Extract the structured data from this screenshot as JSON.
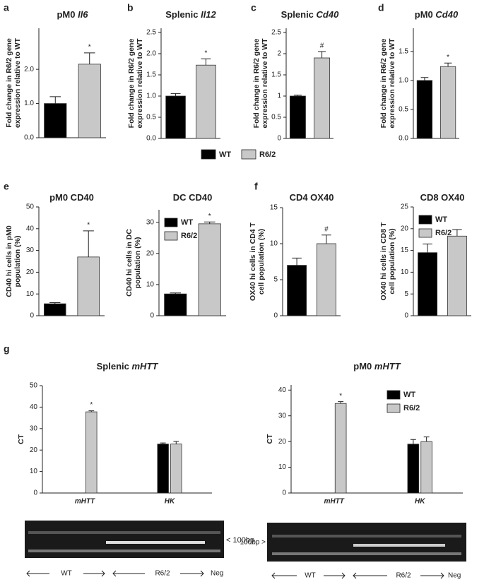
{
  "chart_data": [
    {
      "type": "bar",
      "panel": "a",
      "title": "pM0 ",
      "title_italic": "Il6",
      "ylabel": [
        "Fold change in R6/2 gene",
        "expression relative to WT"
      ],
      "legend": "shared",
      "series": [
        {
          "name": "WT",
          "color": "#000000",
          "values": [
            1.0
          ],
          "error": [
            0.2
          ]
        },
        {
          "name": "R6/2",
          "color": "#c8c8c8",
          "values": [
            2.15
          ],
          "error": [
            0.33
          ],
          "marks": [
            "*"
          ]
        }
      ],
      "ylim": [
        0,
        3.2
      ],
      "yticks": [
        {
          "value": 0,
          "label": "0.0"
        },
        {
          "value": 1,
          "label": "1.0"
        },
        {
          "value": 2,
          "label": "2.0"
        }
      ]
    },
    {
      "type": "bar",
      "panel": "b",
      "title": "Splenic ",
      "title_italic": "Il12",
      "ylabel": [
        "Fold change in R6/2 gene",
        "expression relative to WT"
      ],
      "series": [
        {
          "name": "WT",
          "color": "#000000",
          "values": [
            1.0
          ],
          "error": [
            0.06
          ]
        },
        {
          "name": "R6/2",
          "color": "#c8c8c8",
          "values": [
            1.73
          ],
          "error": [
            0.15
          ],
          "marks": [
            "*"
          ]
        }
      ],
      "ylim": [
        0,
        2.6
      ],
      "yticks": [
        {
          "value": 0,
          "label": "0.0"
        },
        {
          "value": 0.5,
          "label": "0.5"
        },
        {
          "value": 1,
          "label": "1.0"
        },
        {
          "value": 1.5,
          "label": "1.5"
        },
        {
          "value": 2,
          "label": "2.0"
        },
        {
          "value": 2.5,
          "label": "2.5"
        }
      ]
    },
    {
      "type": "bar",
      "panel": "c",
      "title": "Splenic ",
      "title_italic": "Cd40",
      "ylabel": [
        "Fold change in R6/2 gene",
        "expression relative to WT"
      ],
      "series": [
        {
          "name": "WT",
          "color": "#000000",
          "values": [
            1.0
          ],
          "error": [
            0.02
          ]
        },
        {
          "name": "R6/2",
          "color": "#c8c8c8",
          "values": [
            1.9
          ],
          "error": [
            0.15
          ],
          "marks": [
            "#"
          ]
        }
      ],
      "ylim": [
        0,
        2.6
      ],
      "yticks": [
        0,
        0.5,
        1,
        1.5,
        2,
        2.5
      ]
    },
    {
      "type": "bar",
      "panel": "d",
      "title": "pM0 ",
      "title_italic": "Cd40",
      "ylabel": [
        "Fold change in R6/2 gene",
        "expression relative to WT"
      ],
      "series": [
        {
          "name": "WT",
          "color": "#000000",
          "values": [
            1.0
          ],
          "error": [
            0.05
          ]
        },
        {
          "name": "R6/2",
          "color": "#c8c8c8",
          "values": [
            1.24
          ],
          "error": [
            0.06
          ],
          "marks": [
            "*"
          ]
        }
      ],
      "ylim": [
        0,
        1.9
      ],
      "yticks": [
        {
          "value": 0,
          "label": "0.0"
        },
        {
          "value": 0.5,
          "label": "0.5"
        },
        {
          "value": 1,
          "label": "1.0"
        },
        {
          "value": 1.5,
          "label": "1.5"
        }
      ]
    },
    {
      "type": "bar",
      "panel": "e",
      "title": "pM0 CD40",
      "ylabel": [
        "CD40 hi cells in pM0",
        "population (%)"
      ],
      "series": [
        {
          "name": "WT",
          "color": "#000000",
          "values": [
            5.5
          ],
          "error": [
            0.5
          ]
        },
        {
          "name": "R6/2",
          "color": "#c8c8c8",
          "values": [
            27
          ],
          "error": [
            12
          ],
          "marks": [
            "*"
          ]
        }
      ],
      "ylim": [
        0,
        50
      ],
      "yticks": [
        0,
        10,
        20,
        30,
        40,
        50
      ]
    },
    {
      "type": "bar",
      "title": "DC CD40",
      "ylabel": [
        "CD40 hi cells in DC",
        "population (%)"
      ],
      "legend": "upper left",
      "series": [
        {
          "name": "WT",
          "color": "#000000",
          "values": [
            7
          ],
          "error": [
            0.3
          ]
        },
        {
          "name": "R6/2",
          "color": "#c8c8c8",
          "values": [
            29.5
          ],
          "error": [
            0.6
          ],
          "marks": [
            "*"
          ]
        }
      ],
      "ylim": [
        0,
        34
      ],
      "yticks": [
        0,
        10,
        20,
        30
      ]
    },
    {
      "type": "bar",
      "panel": "f",
      "title": "CD4 OX40",
      "ylabel": [
        "OX40 hi cells in CD4 T",
        "cell population (%)"
      ],
      "series": [
        {
          "name": "WT",
          "color": "#000000",
          "values": [
            7
          ],
          "error": [
            1
          ]
        },
        {
          "name": "R6/2",
          "color": "#c8c8c8",
          "values": [
            10
          ],
          "error": [
            1.2
          ],
          "marks": [
            "#"
          ]
        }
      ],
      "ylim": [
        0,
        15
      ],
      "yticks": [
        0,
        5,
        10,
        15
      ]
    },
    {
      "type": "bar",
      "title": "CD8 OX40",
      "ylabel": [
        "OX40 hi cells in CD8 T",
        "cell population (%)"
      ],
      "legend": "upper left",
      "series": [
        {
          "name": "WT",
          "color": "#000000",
          "values": [
            14.5
          ],
          "error": [
            2
          ]
        },
        {
          "name": "R6/2",
          "color": "#c8c8c8",
          "values": [
            18.3
          ],
          "error": [
            1.5
          ]
        }
      ],
      "ylim": [
        0,
        25
      ],
      "yticks": [
        0,
        5,
        10,
        15,
        20,
        25
      ]
    },
    {
      "type": "bar",
      "panel": "g",
      "title": "Splenic ",
      "title_italic": "mHTT",
      "ylabel": [
        "CT"
      ],
      "categories": [
        "mHTT",
        "HK"
      ],
      "series": [
        {
          "name": "WT",
          "color": "#000000",
          "values": [
            null,
            22.8
          ],
          "error": [
            null,
            0.5
          ]
        },
        {
          "name": "R6/2",
          "color": "#c8c8c8",
          "values": [
            37.8,
            22.8
          ],
          "error": [
            0.5,
            1.2
          ],
          "marks": [
            "*",
            null
          ]
        }
      ],
      "ylim": [
        0,
        50
      ],
      "yticks": [
        0,
        10,
        20,
        30,
        40,
        50
      ]
    },
    {
      "type": "bar",
      "title": "pM0 ",
      "title_italic": "mHTT",
      "ylabel": [
        "CT"
      ],
      "categories": [
        "mHTT",
        "HK"
      ],
      "legend": "upper right",
      "series": [
        {
          "name": "WT",
          "color": "#000000",
          "values": [
            null,
            19
          ],
          "error": [
            null,
            1.8
          ]
        },
        {
          "name": "R6/2",
          "color": "#c8c8c8",
          "values": [
            34.8,
            20
          ],
          "error": [
            0.7,
            1.8
          ],
          "marks": [
            "*",
            null
          ]
        }
      ],
      "ylim": [
        0,
        42
      ],
      "yticks": [
        0,
        10,
        20,
        30,
        40
      ]
    }
  ],
  "gels": [
    {
      "marker": "< 100bp",
      "lanes": [
        "WT",
        "R6/2",
        "Neg"
      ]
    },
    {
      "marker": "100bp >",
      "lanes": [
        "WT",
        "R6/2",
        "Neg"
      ]
    }
  ]
}
